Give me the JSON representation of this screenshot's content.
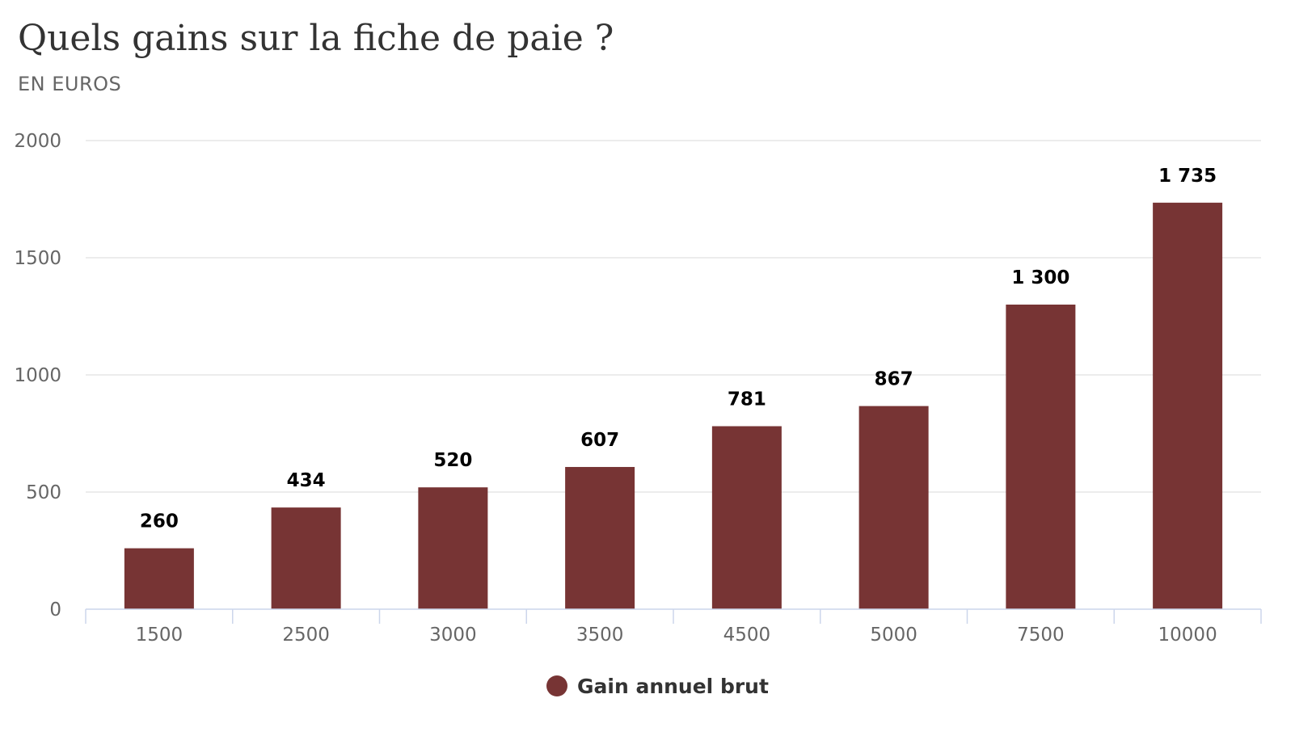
{
  "chart_data": {
    "type": "bar",
    "title": "Quels gains sur la fiche de paie ?",
    "subtitle": "EN EUROS",
    "categories": [
      "1500",
      "2500",
      "3000",
      "3500",
      "4500",
      "5000",
      "7500",
      "10000"
    ],
    "series": [
      {
        "name": "Gain annuel brut",
        "color": "#773434",
        "values": [
          260,
          434,
          520,
          607,
          781,
          867,
          1300,
          1735
        ],
        "labels": [
          "260",
          "434",
          "520",
          "607",
          "781",
          "867",
          "1 300",
          "1 735"
        ]
      }
    ],
    "yticks": [
      "0",
      "500",
      "1000",
      "1500",
      "2000"
    ],
    "ylim": [
      0,
      2000
    ],
    "xlabel": "",
    "ylabel": "",
    "grid": true,
    "legend_position": "bottom-center"
  }
}
